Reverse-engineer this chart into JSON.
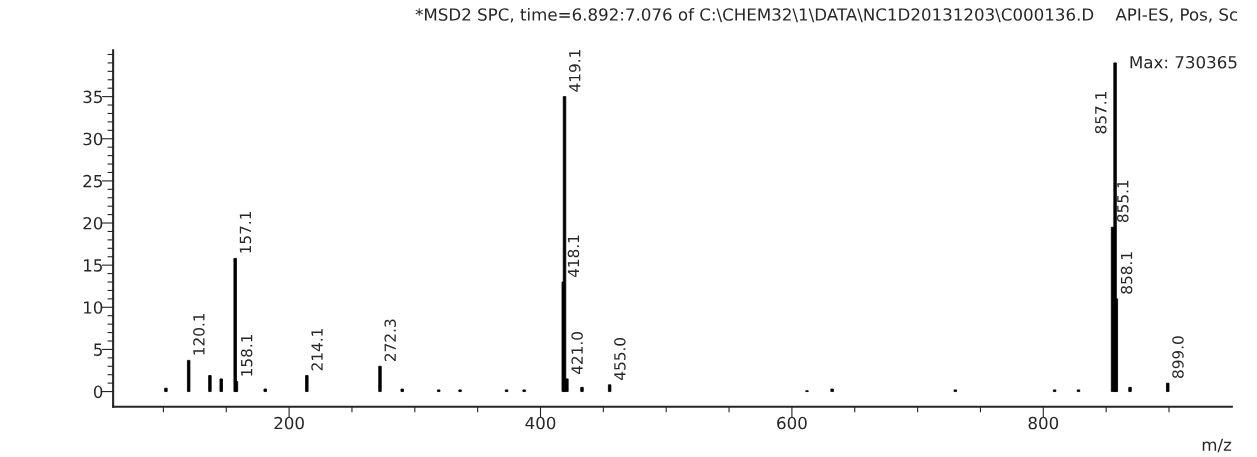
{
  "chart_data": {
    "type": "bar",
    "title": "*MSD2 SPC, time=6.892:7.076 of C:\\CHEM32\\1\\DATA\\NC1D20131203\\C000136.D    API-ES, Pos, Sc",
    "xlabel": "m/z",
    "x": [
      102,
      120.1,
      137,
      146,
      157.1,
      158.1,
      181,
      214.1,
      272.3,
      290,
      319,
      336,
      373,
      387,
      418.1,
      419.1,
      421.0,
      433,
      455.0,
      612,
      632,
      730,
      809,
      828,
      855.1,
      857.1,
      858.1,
      869,
      899.0
    ],
    "values": [
      0.4,
      3.7,
      1.9,
      1.5,
      15.8,
      1.2,
      0.3,
      1.9,
      3.0,
      0.3,
      0.2,
      0.2,
      0.2,
      0.2,
      13,
      35,
      1.5,
      0.5,
      0.8,
      0.1,
      0.3,
      0.2,
      0.2,
      0.2,
      19.5,
      39,
      11,
      0.5,
      1.0
    ],
    "color": "#000000",
    "xlim": [
      60,
      950
    ],
    "xticks": [
      {
        "value": 100,
        "label": null
      },
      {
        "value": 150,
        "label": null
      },
      200,
      {
        "value": 250,
        "label": null
      },
      {
        "value": 300,
        "label": null
      },
      {
        "value": 350,
        "label": null
      },
      400,
      {
        "value": 450,
        "label": null
      },
      {
        "value": 500,
        "label": null
      },
      {
        "value": 550,
        "label": null
      },
      600,
      {
        "value": 650,
        "label": null
      },
      {
        "value": 700,
        "label": null
      },
      {
        "value": 750,
        "label": null
      },
      800,
      {
        "value": 850,
        "label": null
      },
      {
        "value": 900,
        "label": null
      }
    ],
    "ylim": [
      -1.8,
      40.5
    ],
    "yticks": [
      0,
      {
        "value": 1,
        "label": null
      },
      {
        "value": 2,
        "label": null
      },
      {
        "value": 3,
        "label": null
      },
      {
        "value": 4,
        "label": null
      },
      5,
      {
        "value": 6,
        "label": null
      },
      {
        "value": 7,
        "label": null
      },
      {
        "value": 8,
        "label": null
      },
      {
        "value": 9,
        "label": null
      },
      10,
      {
        "value": 11,
        "label": null
      },
      {
        "value": 12,
        "label": null
      },
      {
        "value": 13,
        "label": null
      },
      {
        "value": 14,
        "label": null
      },
      15,
      {
        "value": 16,
        "label": null
      },
      {
        "value": 17,
        "label": null
      },
      {
        "value": 18,
        "label": null
      },
      {
        "value": 19,
        "label": null
      },
      20,
      {
        "value": 21,
        "label": null
      },
      {
        "value": 22,
        "label": null
      },
      {
        "value": 23,
        "label": null
      },
      {
        "value": 24,
        "label": null
      },
      25,
      {
        "value": 26,
        "label": null
      },
      {
        "value": 27,
        "label": null
      },
      {
        "value": 28,
        "label": null
      },
      {
        "value": 29,
        "label": null
      },
      30,
      {
        "value": 31,
        "label": null
      },
      {
        "value": 32,
        "label": null
      },
      {
        "value": 33,
        "label": null
      },
      {
        "value": 34,
        "label": null
      },
      35,
      {
        "value": 36,
        "label": null
      },
      {
        "value": 37,
        "label": null
      },
      {
        "value": 38,
        "label": null
      },
      {
        "value": 39,
        "label": null
      },
      {
        "value": 40,
        "label": null
      }
    ],
    "annotations": [
      "Max: 730365",
      {
        "text": "120.1",
        "x": 120.1,
        "y": 3.7
      },
      {
        "text": "157.1",
        "x": 157.1,
        "y": 15.8
      },
      {
        "text": "158.1",
        "x": 158.1,
        "y": 1.2
      },
      {
        "text": "214.1",
        "x": 214.1,
        "y": 1.9
      },
      {
        "text": "272.3",
        "x": 272.3,
        "y": 3.0
      },
      {
        "text": "418.1",
        "x": 418.1,
        "y": 13
      },
      {
        "text": "419.1",
        "x": 419.1,
        "y": 35
      },
      {
        "text": "421.0",
        "x": 421.0,
        "y": 1.5
      },
      {
        "text": "455.0",
        "x": 455.0,
        "y": 0.8
      },
      {
        "text": "855.1",
        "x": 855.1,
        "y": 19.5
      },
      {
        "text": "857.1",
        "x": 857.1,
        "y": 39
      },
      {
        "text": "858.1",
        "x": 858.1,
        "y": 11
      },
      {
        "text": "899.0",
        "x": 899.0,
        "y": 1.0
      }
    ],
    "grid": false,
    "legend": false
  }
}
